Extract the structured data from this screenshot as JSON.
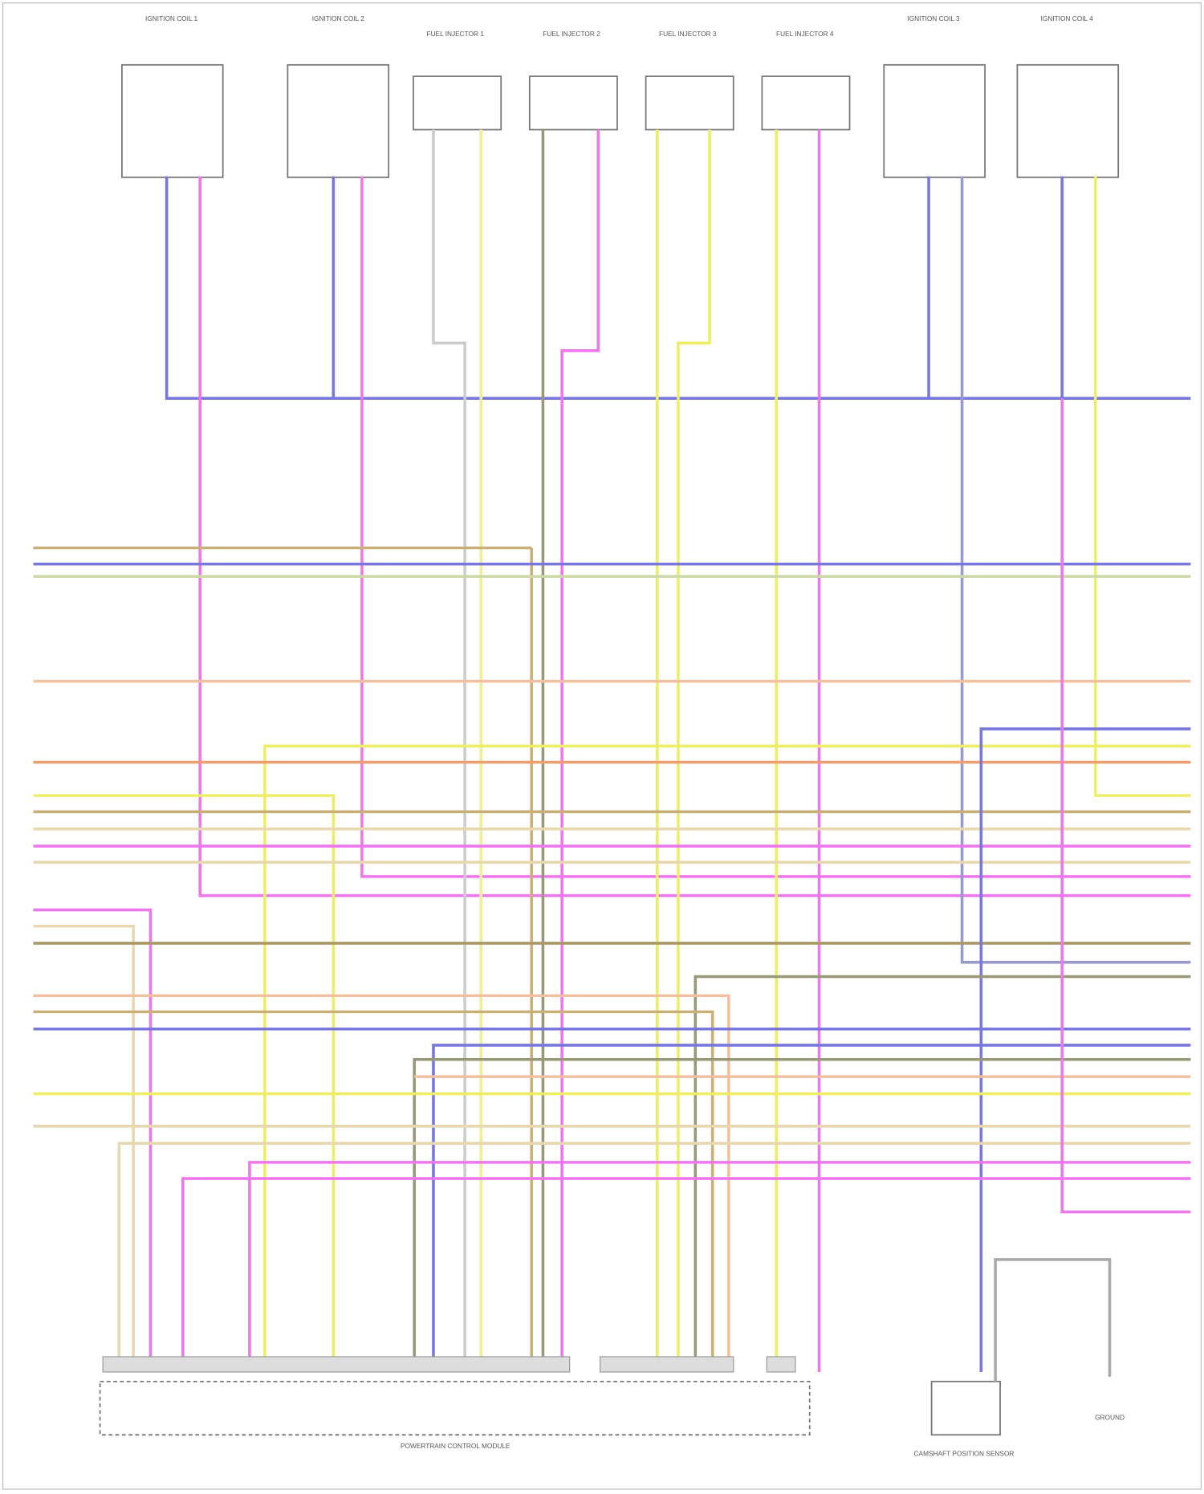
{
  "components": [
    {
      "label": "IGNITION COIL 1"
    },
    {
      "label": "IGNITION COIL 2"
    },
    {
      "label": "FUEL INJECTOR 1"
    },
    {
      "label": "FUEL INJECTOR 2"
    },
    {
      "label": "FUEL INJECTOR 3"
    },
    {
      "label": "FUEL INJECTOR 4"
    },
    {
      "label": "IGNITION COIL 3"
    },
    {
      "label": "IGNITION COIL 4"
    }
  ],
  "pcm": {
    "label": "POWERTRAIN CONTROL MODULE"
  },
  "bottom_right": [
    {
      "label": "CAMSHAFT POSITION SENSOR"
    },
    {
      "label": "GROUND"
    }
  ]
}
